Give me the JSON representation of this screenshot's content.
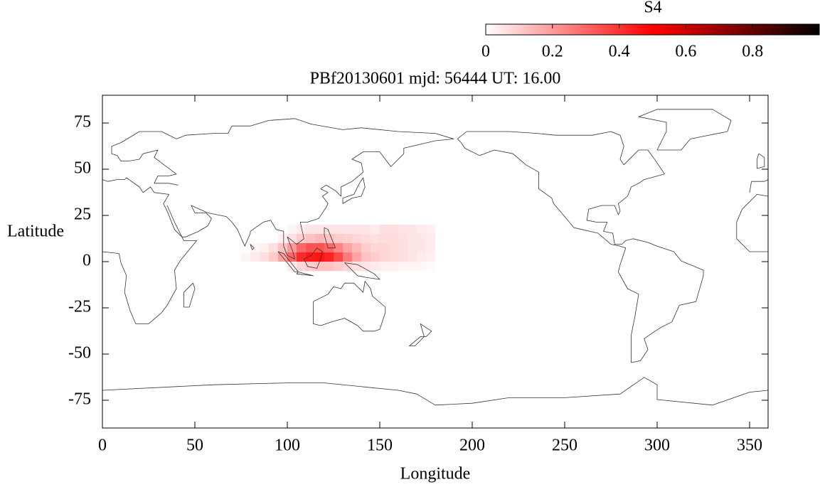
{
  "chart_data": {
    "type": "heatmap",
    "title": "PBf20130601  mjd: 56444  UT:  16.00",
    "x_label": "Longitude",
    "y_label": "Latitude",
    "xlim": [
      0,
      360
    ],
    "ylim": [
      -90,
      90
    ],
    "xticks": [
      0,
      50,
      100,
      150,
      200,
      250,
      300,
      350
    ],
    "yticks": [
      -75,
      -50,
      -25,
      0,
      25,
      50,
      75
    ],
    "x": [
      77.5,
      82.5,
      87.5,
      92.5,
      97.5,
      102.5,
      107.5,
      112.5,
      117.5,
      122.5,
      127.5,
      132.5,
      137.5,
      142.5,
      147.5,
      152.5,
      157.5,
      162.5,
      167.5,
      172.5,
      177.5
    ],
    "y": [
      17.5,
      12.5,
      7.5,
      2.5,
      -2.5
    ],
    "z": [
      [
        0,
        0,
        0,
        0,
        0,
        0.02,
        0.04,
        0.05,
        0.05,
        0.05,
        0.05,
        0.05,
        0.05,
        0.05,
        0.04,
        0.06,
        0.06,
        0.05,
        0.05,
        0.04,
        0.03
      ],
      [
        0,
        0,
        0,
        0,
        0.03,
        0.06,
        0.1,
        0.12,
        0.14,
        0.12,
        0.1,
        0.09,
        0.08,
        0.07,
        0.06,
        0.07,
        0.07,
        0.06,
        0.05,
        0.05,
        0.04
      ],
      [
        0,
        0.02,
        0.03,
        0.06,
        0.12,
        0.2,
        0.3,
        0.34,
        0.34,
        0.3,
        0.24,
        0.18,
        0.14,
        0.1,
        0.08,
        0.08,
        0.07,
        0.06,
        0.05,
        0.05,
        0.04
      ],
      [
        0.02,
        0.04,
        0.06,
        0.1,
        0.18,
        0.3,
        0.42,
        0.45,
        0.46,
        0.43,
        0.36,
        0.26,
        0.18,
        0.12,
        0.1,
        0.08,
        0.07,
        0.06,
        0.05,
        0.04,
        0.03
      ],
      [
        0,
        0,
        0,
        0,
        0,
        0.04,
        0.08,
        0.1,
        0.12,
        0.12,
        0.1,
        0.08,
        0.06,
        0.05,
        0.04,
        0.03,
        0.03,
        0.02,
        0.02,
        0.02,
        0.01
      ]
    ],
    "colorbar": {
      "label": "S4",
      "lim": [
        0,
        1
      ],
      "ticks": [
        0,
        0.2,
        0.4,
        0.6,
        0.8
      ],
      "colormap": [
        "#ffffff",
        "#ff0000",
        "#000000"
      ]
    }
  }
}
